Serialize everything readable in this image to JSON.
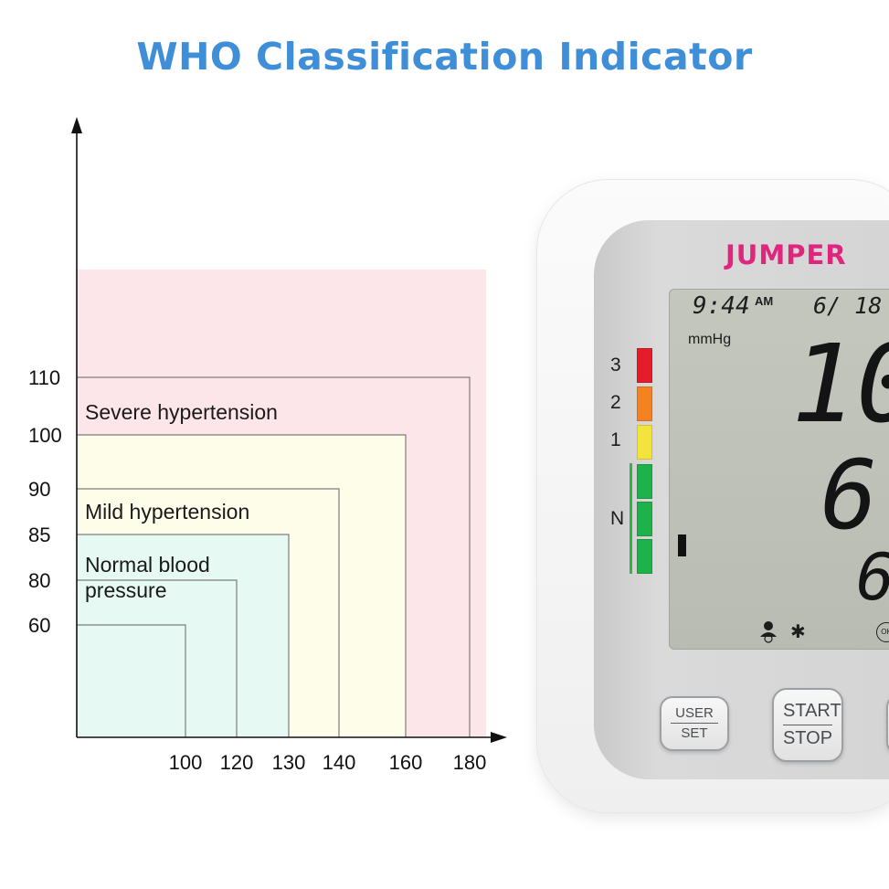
{
  "title": "WHO Classification Indicator",
  "chart_data": {
    "type": "nested-area",
    "xlabel": "",
    "ylabel": "",
    "x_ticks": [
      100,
      120,
      130,
      140,
      160,
      180
    ],
    "y_ticks": [
      60,
      80,
      85,
      90,
      100,
      110
    ],
    "categories": [
      {
        "label": "Severe hypertension",
        "color": "#fde6e9",
        "systolic_max": 180,
        "diastolic_max": 110
      },
      {
        "label": "Mild hypertension",
        "color": "#fefde9",
        "systolic_max": 140,
        "diastolic_max": 90
      },
      {
        "label": "Normal blood pressure",
        "label_lines": [
          "Normal blood",
          "pressure"
        ],
        "color": "#e6f9f2",
        "systolic_max": 130,
        "diastolic_max": 85
      }
    ],
    "boundaries": [
      {
        "systolic": 100,
        "diastolic": 60
      },
      {
        "systolic": 120,
        "diastolic": 80
      },
      {
        "systolic": 130,
        "diastolic": 85
      },
      {
        "systolic": 140,
        "diastolic": 90
      },
      {
        "systolic": 160,
        "diastolic": 100
      },
      {
        "systolic": 180,
        "diastolic": 110
      }
    ]
  },
  "device": {
    "brand": "JUMPER",
    "time": "9:44",
    "ampm": "AM",
    "date": "6/ 18",
    "unit": "mmHg",
    "systolic_partial": "10",
    "diastolic_partial": "6",
    "pulse_partial": "6",
    "ok_label": "OK",
    "level_labels": [
      "3",
      "2",
      "1",
      "N"
    ],
    "level_colors": [
      "#e51d2a",
      "#f58220",
      "#f3e33a",
      "#1fb24b"
    ],
    "buttons": {
      "user": [
        "USER",
        "SET"
      ],
      "start": [
        "START",
        "STOP"
      ]
    }
  }
}
